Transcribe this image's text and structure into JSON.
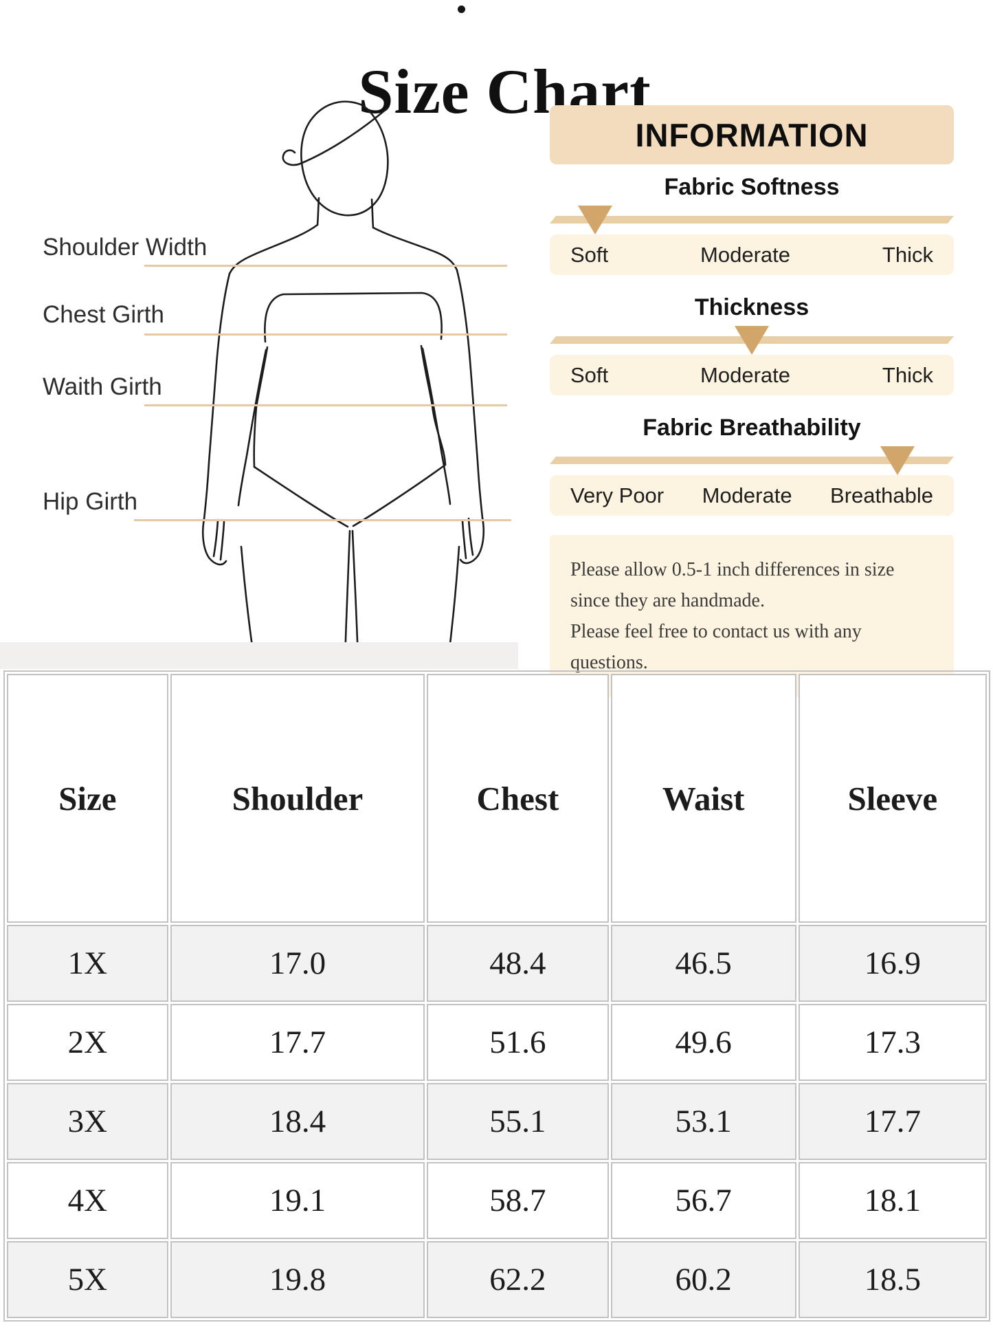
{
  "title": "Size Chart",
  "figure": {
    "measurement_labels": [
      "Shoulder Width",
      "Chest Girth",
      "Waith Girth",
      "Hip Girth"
    ]
  },
  "info": {
    "header": "INFORMATION",
    "scales": [
      {
        "title": "Fabric Softness",
        "levels": [
          "Soft",
          "Moderate",
          "Thick"
        ],
        "marker_pct": 11.3
      },
      {
        "title": "Thickness",
        "levels": [
          "Soft",
          "Moderate",
          "Thick"
        ],
        "marker_pct": 50
      },
      {
        "title": "Fabric Breathability",
        "levels": [
          "Very Poor",
          "Moderate",
          "Breathable"
        ],
        "marker_pct": 86
      }
    ],
    "note": "Please allow 0.5-1 inch differences in size\nsince they are handmade.\nPlease feel free to contact us with any questions."
  },
  "table": {
    "columns": [
      "Size",
      "Shoulder",
      "Chest",
      "Waist",
      "Sleeve"
    ],
    "rows": [
      [
        "1X",
        "17.0",
        "48.4",
        "46.5",
        "16.9"
      ],
      [
        "2X",
        "17.7",
        "51.6",
        "49.6",
        "17.3"
      ],
      [
        "3X",
        "18.4",
        "55.1",
        "53.1",
        "17.7"
      ],
      [
        "4X",
        "19.1",
        "58.7",
        "56.7",
        "18.1"
      ],
      [
        "5X",
        "19.8",
        "62.2",
        "60.2",
        "18.5"
      ]
    ]
  },
  "colors": {
    "header_box_bg": "#f3dcbd",
    "bar": "#e9cfa6",
    "marker": "#d2a56a",
    "labels_box_bg": "#fcf3e0",
    "note_bg": "#fcf3e0",
    "line": "#e6c9a2",
    "table_border": "#c2c2c2",
    "row_alt_bg": "#f2f2f2"
  }
}
